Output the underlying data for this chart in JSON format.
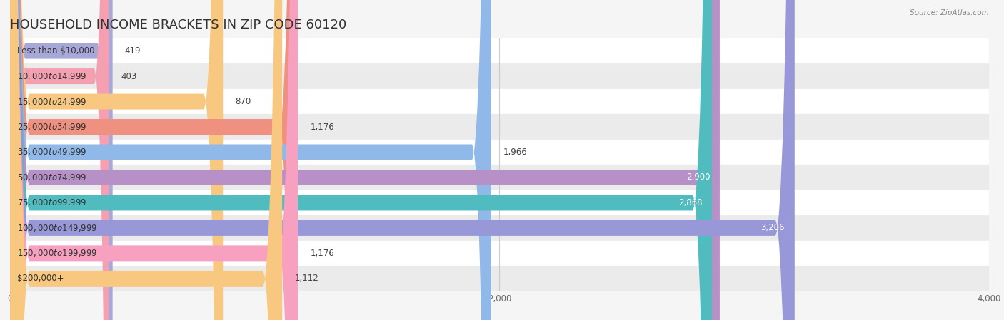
{
  "title": "HOUSEHOLD INCOME BRACKETS IN ZIP CODE 60120",
  "source": "Source: ZipAtlas.com",
  "categories": [
    "Less than $10,000",
    "$10,000 to $14,999",
    "$15,000 to $24,999",
    "$25,000 to $34,999",
    "$35,000 to $49,999",
    "$50,000 to $74,999",
    "$75,000 to $99,999",
    "$100,000 to $149,999",
    "$150,000 to $199,999",
    "$200,000+"
  ],
  "values": [
    419,
    403,
    870,
    1176,
    1966,
    2900,
    2868,
    3206,
    1176,
    1112
  ],
  "bar_colors": [
    "#a8a8d8",
    "#f4a0b0",
    "#f8c880",
    "#f09080",
    "#90b8e8",
    "#b890c8",
    "#50bcc0",
    "#9898d8",
    "#f8a0c0",
    "#f8c880"
  ],
  "xlim": [
    0,
    4000
  ],
  "xticks": [
    0,
    2000,
    4000
  ],
  "background_color": "#f5f5f5",
  "row_bg_even": "#ffffff",
  "row_bg_odd": "#ebebeb",
  "title_fontsize": 13,
  "label_fontsize": 8.5,
  "value_fontsize": 8.5,
  "value_color_inside": "#ffffff",
  "value_color_outside": "#444444",
  "cat_label_color": "#333333",
  "inside_label_threshold": 2000
}
